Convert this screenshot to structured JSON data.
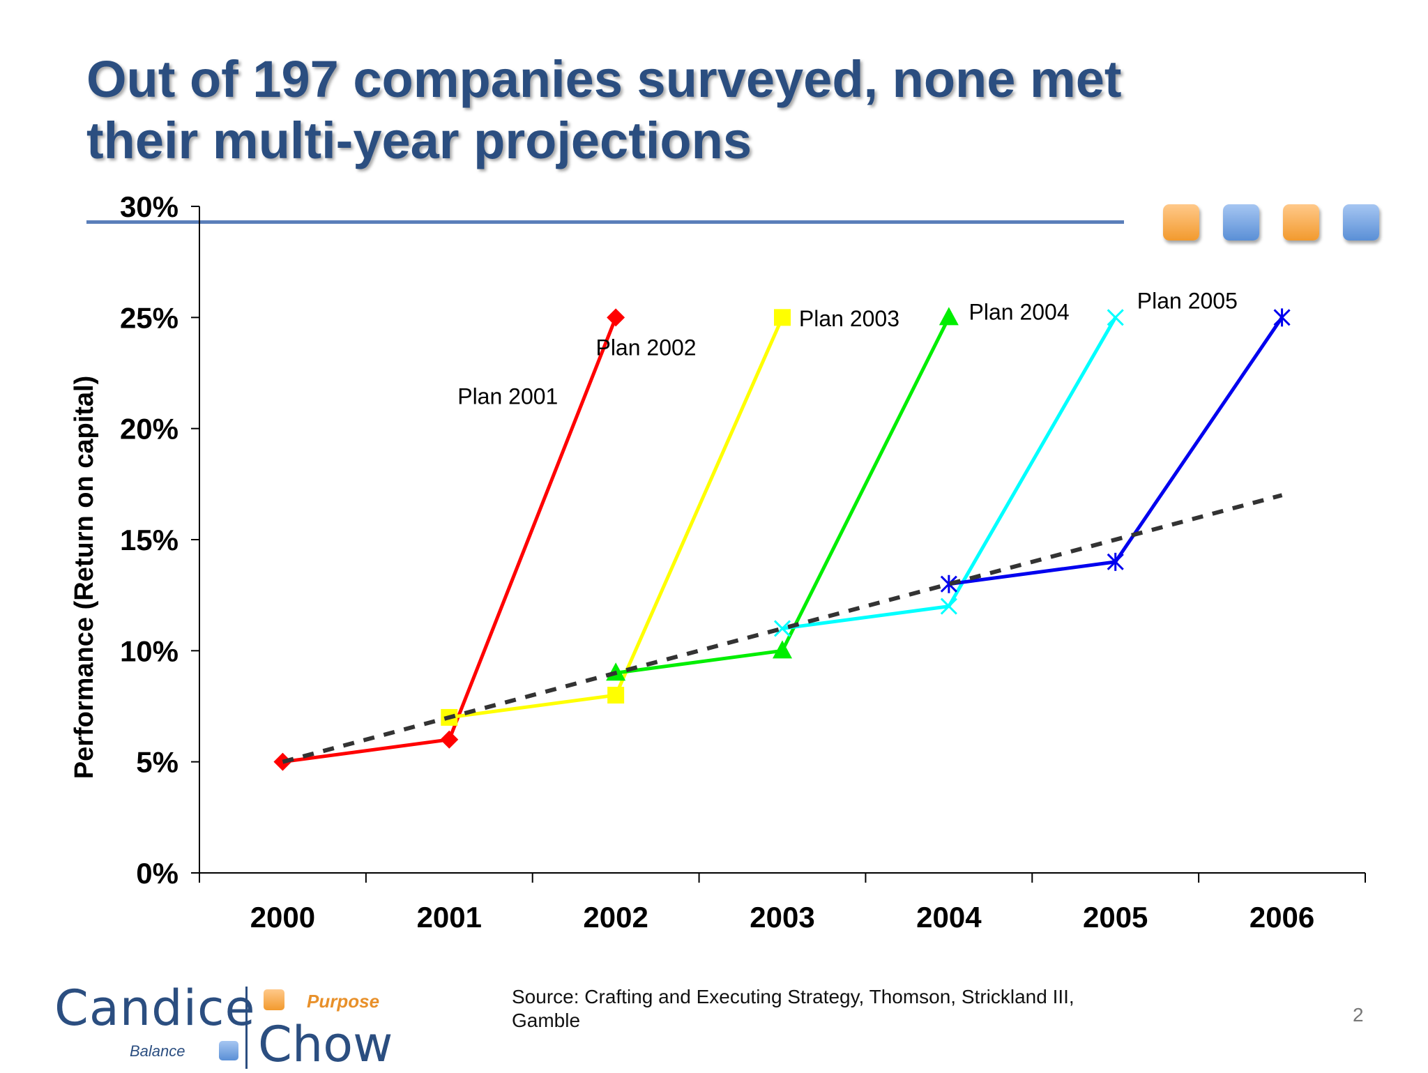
{
  "slide": {
    "title_line1": "Out of 197 companies surveyed, none met",
    "title_line2": "their multi-year projections",
    "source_line1": "Source: Crafting and Executing Strategy, Thomson, Strickland III,",
    "source_line2": "Gamble",
    "page_number": "2"
  },
  "logo": {
    "name_left": "Candice",
    "name_right": "Chow",
    "tag_top": "Purpose",
    "tag_bottom": "Balance"
  },
  "decor": {
    "square_colors": [
      "#f5a640",
      "#6b9be0",
      "#f5a640",
      "#6b9be0"
    ],
    "title_color": "#2b4e80",
    "rule_color": "#5b7fba"
  },
  "chart_data": {
    "type": "line",
    "title": "",
    "xlabel": "",
    "ylabel": "Performance (Return on capital)",
    "x": [
      2000,
      2001,
      2002,
      2003,
      2004,
      2005,
      2006
    ],
    "xlim": [
      1999.5,
      2006.5
    ],
    "ylim": [
      0,
      30
    ],
    "yticks": [
      0,
      5,
      10,
      15,
      20,
      25,
      30
    ],
    "ytick_labels": [
      "0%",
      "5%",
      "10%",
      "15%",
      "20%",
      "25%",
      "30%"
    ],
    "xtick_labels": [
      "2000",
      "2001",
      "2002",
      "2003",
      "2004",
      "2005",
      "2006"
    ],
    "grid": false,
    "series": [
      {
        "name": "Plan 2001",
        "color": "#ff0000",
        "marker": "diamond",
        "x": [
          2000,
          2001,
          2002
        ],
        "y": [
          5,
          6,
          25
        ]
      },
      {
        "name": "Plan 2002",
        "color": "#ffff00",
        "marker": "square",
        "x": [
          2001,
          2002,
          2003
        ],
        "y": [
          7,
          8,
          25
        ]
      },
      {
        "name": "Plan 2003",
        "color": "#00ee00",
        "marker": "triangle",
        "x": [
          2002,
          2003,
          2004
        ],
        "y": [
          9,
          10,
          25
        ]
      },
      {
        "name": "Plan 2004",
        "color": "#00ffff",
        "marker": "x",
        "x": [
          2003,
          2004,
          2005
        ],
        "y": [
          11,
          12,
          25
        ]
      },
      {
        "name": "Plan 2005",
        "color": "#0000ee",
        "marker": "star",
        "x": [
          2004,
          2005,
          2006
        ],
        "y": [
          13,
          14,
          25
        ]
      },
      {
        "color": "#333333",
        "dashed": true,
        "x": [
          2000,
          2006
        ],
        "y": [
          5,
          17
        ]
      }
    ],
    "annotations": [
      {
        "text": "Plan 2001",
        "x": 2001.05,
        "y": 21.1
      },
      {
        "text": "Plan 2002",
        "x": 2001.88,
        "y": 23.3
      },
      {
        "text": "Plan 2003",
        "x": 2003.1,
        "y": 24.6
      },
      {
        "text": "Plan 2004",
        "x": 2004.12,
        "y": 24.9
      },
      {
        "text": "Plan 2005",
        "x": 2005.13,
        "y": 25.4
      }
    ]
  }
}
